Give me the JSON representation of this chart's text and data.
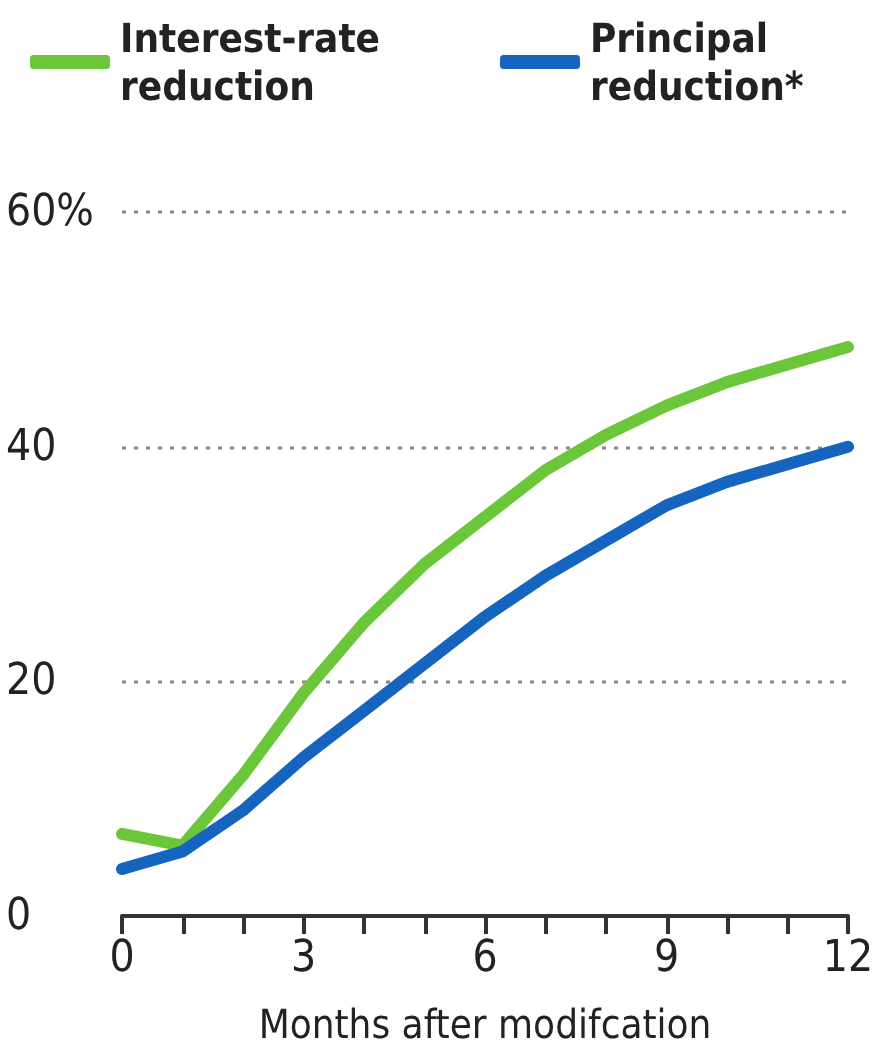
{
  "chart_data": {
    "type": "line",
    "xlabel": "Months after modifcation",
    "x": [
      0,
      1,
      2,
      3,
      4,
      5,
      6,
      7,
      8,
      9,
      10,
      11,
      12
    ],
    "series": [
      {
        "name": "Interest-rate reduction",
        "color": "#6cc63a",
        "values": [
          7,
          6,
          12,
          19,
          25,
          30,
          34,
          38,
          41,
          43.5,
          45.5,
          47,
          48.5
        ]
      },
      {
        "name": "Principal reduction*",
        "color": "#1565c0",
        "values": [
          4,
          5.5,
          9,
          13.5,
          17.5,
          21.5,
          25.5,
          29,
          32,
          35,
          37,
          38.5,
          40
        ]
      }
    ],
    "xlim": [
      0,
      12
    ],
    "xticks": [
      0,
      {
        "value": 1,
        "label": null
      },
      {
        "value": 2,
        "label": null
      },
      3,
      {
        "value": 4,
        "label": null
      },
      {
        "value": 5,
        "label": null
      },
      6,
      {
        "value": 7,
        "label": null
      },
      {
        "value": 8,
        "label": null
      },
      9,
      {
        "value": 10,
        "label": null
      },
      {
        "value": 11,
        "label": null
      },
      12
    ],
    "ylim": [
      0,
      60
    ],
    "yticks": [
      0,
      20,
      40,
      {
        "value": 60,
        "label": "60%"
      }
    ],
    "grid": "y",
    "legend": "top left",
    "marker": "none",
    "line_style": "solid"
  }
}
